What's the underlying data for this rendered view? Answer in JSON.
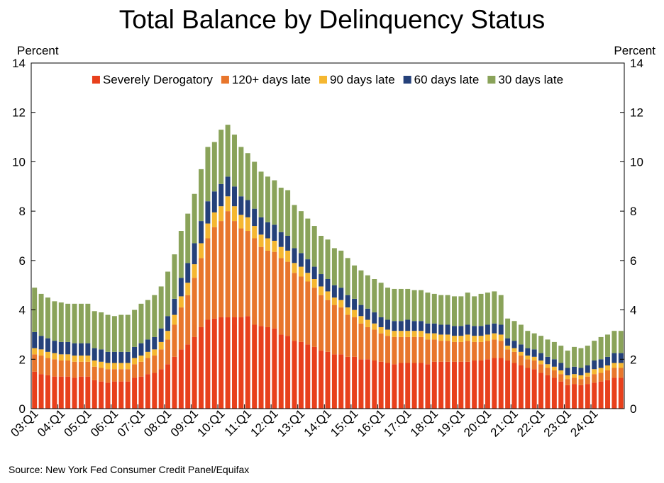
{
  "title": "Total Balance by Delinquency Status",
  "source": "Source: New York Fed Consumer Credit Panel/Equifax",
  "chart_data": {
    "type": "bar",
    "stacked": true,
    "title": "Total Balance by Delinquency Status",
    "ylabel_left": "Percent",
    "ylabel_right": "Percent",
    "ylim": [
      0,
      14
    ],
    "yticks": [
      0,
      2,
      4,
      6,
      8,
      10,
      12,
      14
    ],
    "grid": false,
    "legend_position": "top-center",
    "x_tick_labels": [
      "03:Q1",
      "04:Q1",
      "05:Q1",
      "06:Q1",
      "07:Q1",
      "08:Q1",
      "09:Q1",
      "10:Q1",
      "11:Q1",
      "12:Q1",
      "13:Q1",
      "14:Q1",
      "15:Q1",
      "16:Q1",
      "17:Q1",
      "18:Q1",
      "19:Q1",
      "20:Q1",
      "21:Q1",
      "22:Q1",
      "23:Q1",
      "24:Q1"
    ],
    "first_quarter": "03:Q1",
    "series": [
      {
        "name": "Severely Derogatory",
        "color": "#e8401c",
        "values": [
          1.5,
          1.4,
          1.35,
          1.3,
          1.3,
          1.3,
          1.25,
          1.3,
          1.3,
          1.15,
          1.1,
          1.05,
          1.1,
          1.1,
          1.1,
          1.25,
          1.3,
          1.4,
          1.45,
          1.6,
          1.8,
          2.1,
          2.4,
          2.6,
          2.9,
          3.3,
          3.6,
          3.65,
          3.7,
          3.7,
          3.7,
          3.7,
          3.75,
          3.4,
          3.35,
          3.3,
          3.25,
          3.0,
          2.95,
          2.75,
          2.7,
          2.6,
          2.5,
          2.35,
          2.3,
          2.2,
          2.2,
          2.1,
          2.1,
          2.0,
          2.0,
          1.95,
          1.9,
          1.85,
          1.8,
          1.85,
          1.85,
          1.85,
          1.85,
          1.8,
          1.9,
          1.9,
          1.9,
          1.9,
          1.9,
          1.9,
          1.95,
          1.95,
          2.0,
          2.05,
          2.05,
          1.95,
          1.85,
          1.75,
          1.65,
          1.6,
          1.45,
          1.35,
          1.25,
          1.1,
          0.95,
          1.0,
          0.95,
          1.0,
          1.05,
          1.1,
          1.15,
          1.25,
          1.25
        ]
      },
      {
        "name": "120+ days late",
        "color": "#e8762c",
        "values": [
          0.7,
          0.75,
          0.7,
          0.7,
          0.65,
          0.65,
          0.65,
          0.6,
          0.6,
          0.55,
          0.55,
          0.55,
          0.5,
          0.5,
          0.5,
          0.55,
          0.6,
          0.65,
          0.7,
          0.8,
          1.0,
          1.3,
          1.7,
          2.0,
          2.4,
          2.8,
          3.3,
          3.7,
          3.9,
          4.3,
          3.9,
          3.6,
          3.45,
          3.5,
          3.2,
          3.1,
          3.1,
          3.1,
          3.0,
          2.75,
          2.65,
          2.55,
          2.4,
          2.25,
          2.1,
          2.0,
          1.9,
          1.7,
          1.6,
          1.45,
          1.3,
          1.25,
          1.15,
          1.1,
          1.1,
          1.05,
          1.05,
          1.05,
          1.05,
          1.0,
          0.9,
          0.85,
          0.85,
          0.8,
          0.8,
          0.85,
          0.75,
          0.75,
          0.75,
          0.75,
          0.7,
          0.45,
          0.45,
          0.4,
          0.35,
          0.35,
          0.35,
          0.3,
          0.3,
          0.3,
          0.25,
          0.25,
          0.25,
          0.3,
          0.35,
          0.35,
          0.4,
          0.4,
          0.4
        ]
      },
      {
        "name": "90 days late",
        "color": "#f5b731",
        "values": [
          0.25,
          0.25,
          0.25,
          0.25,
          0.25,
          0.25,
          0.25,
          0.25,
          0.25,
          0.25,
          0.25,
          0.25,
          0.25,
          0.25,
          0.25,
          0.25,
          0.25,
          0.25,
          0.25,
          0.3,
          0.35,
          0.4,
          0.45,
          0.5,
          0.55,
          0.6,
          0.6,
          0.6,
          0.6,
          0.6,
          0.6,
          0.55,
          0.55,
          0.5,
          0.5,
          0.5,
          0.45,
          0.45,
          0.45,
          0.4,
          0.4,
          0.35,
          0.35,
          0.35,
          0.35,
          0.3,
          0.3,
          0.3,
          0.3,
          0.3,
          0.3,
          0.25,
          0.25,
          0.25,
          0.25,
          0.25,
          0.25,
          0.25,
          0.25,
          0.25,
          0.25,
          0.25,
          0.25,
          0.25,
          0.25,
          0.25,
          0.25,
          0.25,
          0.25,
          0.25,
          0.25,
          0.15,
          0.15,
          0.15,
          0.15,
          0.15,
          0.15,
          0.15,
          0.15,
          0.15,
          0.15,
          0.15,
          0.15,
          0.15,
          0.2,
          0.2,
          0.2,
          0.2,
          0.2
        ]
      },
      {
        "name": "60 days late",
        "color": "#25417a",
        "values": [
          0.65,
          0.55,
          0.55,
          0.5,
          0.5,
          0.5,
          0.5,
          0.5,
          0.5,
          0.5,
          0.5,
          0.45,
          0.45,
          0.45,
          0.45,
          0.45,
          0.5,
          0.5,
          0.5,
          0.55,
          0.6,
          0.65,
          0.75,
          0.8,
          0.85,
          0.9,
          0.9,
          0.85,
          0.9,
          0.8,
          0.8,
          0.75,
          0.7,
          0.7,
          0.7,
          0.65,
          0.65,
          0.6,
          0.6,
          0.6,
          0.55,
          0.55,
          0.5,
          0.5,
          0.5,
          0.5,
          0.5,
          0.5,
          0.45,
          0.45,
          0.45,
          0.45,
          0.4,
          0.4,
          0.4,
          0.4,
          0.45,
          0.4,
          0.4,
          0.4,
          0.4,
          0.4,
          0.4,
          0.4,
          0.4,
          0.4,
          0.4,
          0.4,
          0.4,
          0.4,
          0.4,
          0.3,
          0.3,
          0.3,
          0.3,
          0.3,
          0.3,
          0.3,
          0.3,
          0.3,
          0.3,
          0.3,
          0.3,
          0.3,
          0.35,
          0.35,
          0.35,
          0.4,
          0.4
        ]
      },
      {
        "name": "30 days late",
        "color": "#8aa35a",
        "values": [
          1.8,
          1.7,
          1.65,
          1.6,
          1.6,
          1.55,
          1.6,
          1.6,
          1.6,
          1.5,
          1.5,
          1.5,
          1.45,
          1.5,
          1.5,
          1.5,
          1.6,
          1.6,
          1.7,
          1.7,
          1.8,
          1.8,
          1.9,
          2.0,
          2.0,
          2.1,
          2.2,
          2.0,
          2.2,
          2.1,
          2.1,
          2.0,
          1.9,
          1.9,
          1.85,
          1.85,
          1.8,
          1.8,
          1.85,
          1.75,
          1.7,
          1.65,
          1.65,
          1.55,
          1.6,
          1.5,
          1.5,
          1.5,
          1.35,
          1.4,
          1.35,
          1.35,
          1.4,
          1.3,
          1.3,
          1.3,
          1.25,
          1.25,
          1.25,
          1.25,
          1.2,
          1.2,
          1.2,
          1.2,
          1.2,
          1.3,
          1.2,
          1.3,
          1.3,
          1.3,
          1.2,
          0.8,
          0.8,
          0.8,
          0.7,
          0.65,
          0.7,
          0.7,
          0.7,
          0.7,
          0.7,
          0.8,
          0.8,
          0.8,
          0.8,
          0.9,
          0.9,
          0.9,
          0.9
        ]
      }
    ]
  }
}
